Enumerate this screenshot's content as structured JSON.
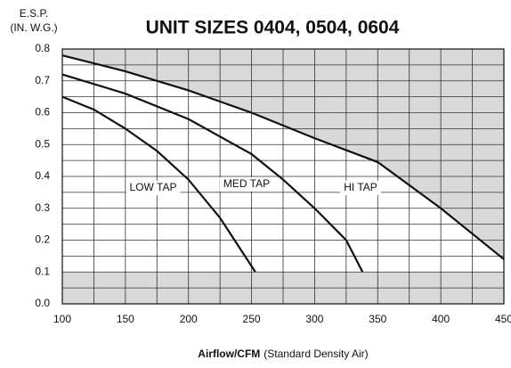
{
  "chart_data": {
    "type": "line",
    "title": "UNIT SIZES 0404, 0504, 0604",
    "ylabel": [
      "E.S.P.",
      "(IN. W.G.)"
    ],
    "xlabel": {
      "bold": "Airflow/CFM",
      "rest": "(Standard Density Air)"
    },
    "xlim": [
      100,
      450
    ],
    "ylim": [
      0,
      0.8
    ],
    "xticks": [
      100,
      150,
      200,
      250,
      300,
      350,
      400,
      450
    ],
    "yticks": [
      {
        "value": 0,
        "label": "0.0"
      },
      0.1,
      0.2,
      0.3,
      0.4,
      0.5,
      0.6,
      0.7,
      0.8
    ],
    "x_minor_ticks": [
      125,
      175,
      225,
      275,
      325,
      375,
      425
    ],
    "y_minor_ticks": [
      0.05,
      0.15,
      0.25,
      0.35,
      0.45,
      0.55,
      0.65,
      0.75
    ],
    "grid": true,
    "shade_below": 0.1,
    "shade_color": "#d9d9d9",
    "series": [
      {
        "name": "LOW TAP",
        "color": "#111111",
        "x": [
          100,
          125,
          150,
          175,
          200,
          225,
          253
        ],
        "values": [
          0.65,
          0.61,
          0.55,
          0.48,
          0.39,
          0.27,
          0.1
        ]
      },
      {
        "name": "MED TAP",
        "color": "#111111",
        "x": [
          100,
          150,
          200,
          250,
          275,
          300,
          325,
          338
        ],
        "values": [
          0.72,
          0.66,
          0.58,
          0.47,
          0.39,
          0.3,
          0.2,
          0.1
        ]
      },
      {
        "name": "HI TAP",
        "color": "#111111",
        "shade_above": true,
        "x": [
          100,
          150,
          200,
          250,
          300,
          350,
          400,
          450
        ],
        "values": [
          0.78,
          0.73,
          0.67,
          0.6,
          0.52,
          0.445,
          0.3,
          0.14
        ]
      }
    ]
  }
}
